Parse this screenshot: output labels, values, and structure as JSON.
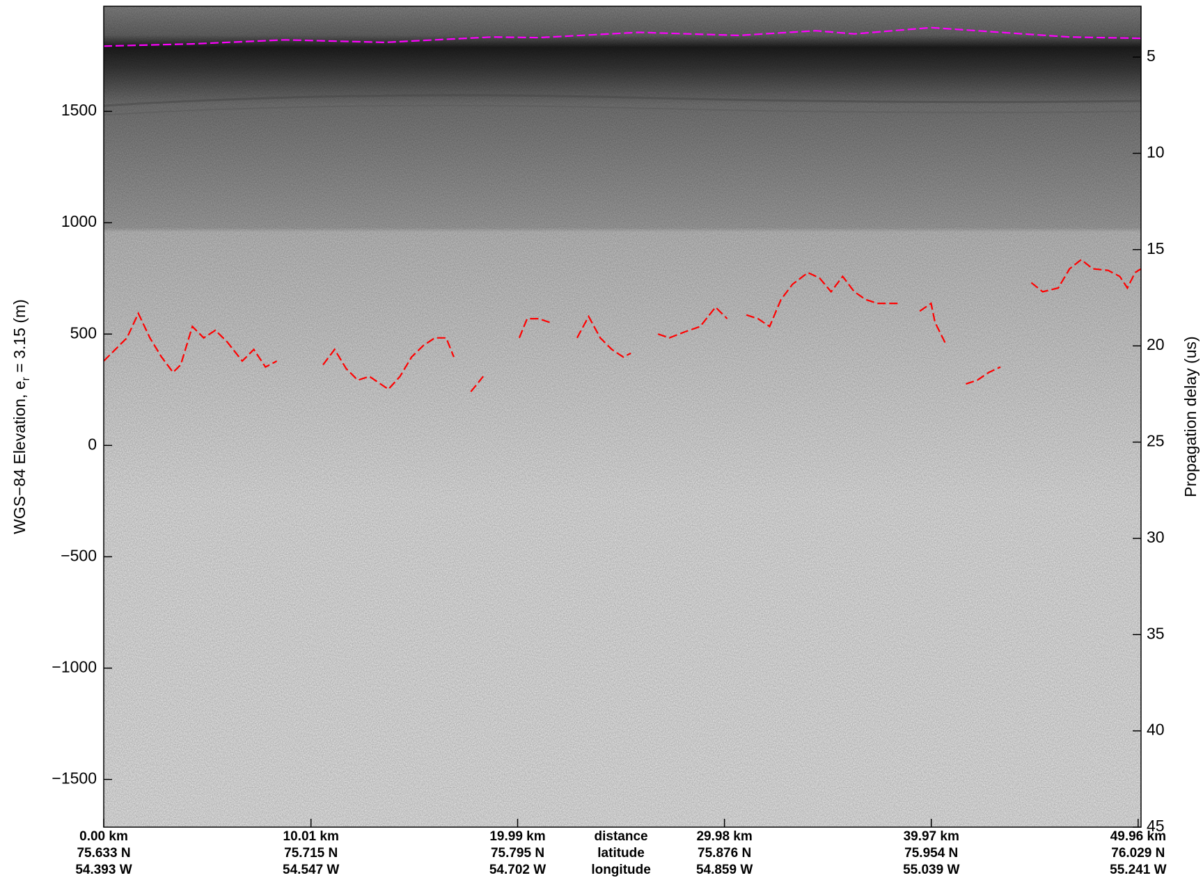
{
  "chart_data": {
    "type": "line",
    "ylabel": {
      "text": "WGS−84 Elevation, e",
      "subscript": "r",
      "suffix": " = 3.15 (m)"
    },
    "y2label": "Propagation delay (us)",
    "xlim": [
      0,
      50.1
    ],
    "ylim": [
      -1714,
      1972
    ],
    "y2lim": [
      2.36,
      45
    ],
    "xticks": [
      {
        "value": 0,
        "label": "0.00 km"
      },
      {
        "value": 10.01,
        "label": "10.01 km"
      },
      {
        "value": 19.99,
        "label": "19.99 km"
      },
      {
        "value": 29.98,
        "label": "29.98 km"
      },
      {
        "value": 39.97,
        "label": "39.97 km"
      },
      {
        "value": 49.96,
        "label": "49.96 km"
      }
    ],
    "x_tick_latitudes": [
      "75.633 N",
      "75.715 N",
      "75.795 N",
      "75.876 N",
      "75.954 N",
      "76.029 N"
    ],
    "x_tick_longitudes": [
      "54.393 W",
      "54.547 W",
      "54.702 W",
      "54.859 W",
      "55.039 W",
      "55.241 W"
    ],
    "x_row_labels": [
      "distance",
      "latitude",
      "longitude"
    ],
    "yticks": [
      {
        "value": -1500,
        "label": "−1500"
      },
      {
        "value": -1000,
        "label": "−1000"
      },
      {
        "value": -500,
        "label": "−500"
      },
      0,
      500,
      1000,
      1500
    ],
    "y2ticks": [
      5,
      10,
      15,
      20,
      25,
      30,
      35,
      40,
      45
    ],
    "series": [
      {
        "color": "#ff00ff",
        "x": [
          0,
          4.28,
          8.74,
          13.57,
          18.77,
          21.0,
          25.84,
          30.67,
          34.39,
          36.25,
          39.96,
          43.31,
          46.65,
          50.1
        ],
        "values": [
          1793,
          1803,
          1821,
          1810,
          1834,
          1831,
          1855,
          1841,
          1862,
          1848,
          1876,
          1855,
          1834,
          1828
        ]
      },
      {
        "color": "#ff0000",
        "x": [
          0,
          0.56,
          1.12,
          1.67,
          2.23,
          2.79,
          3.35,
          3.72,
          4.28,
          4.83,
          5.39,
          5.95,
          6.69,
          7.25,
          7.81,
          8.36,
          9.0,
          9.67,
          10.1,
          10.59,
          11.15,
          11.71,
          12.27,
          12.83,
          13.75,
          14.31,
          14.87,
          15.43,
          15.99,
          16.54,
          16.91,
          17.3,
          17.73,
          18.33,
          19.2,
          20.07,
          20.45,
          21.0,
          21.56,
          22.2,
          22.86,
          23.42,
          23.98,
          24.54,
          25.09,
          25.46,
          26.1,
          26.77,
          27.32,
          28.07,
          28.81,
          29.55,
          30.11,
          30.6,
          31.04,
          31.6,
          32.16,
          32.71,
          33.27,
          34.01,
          34.57,
          35.13,
          35.69,
          36.25,
          36.8,
          37.36,
          37.92,
          38.48,
          38.9,
          39.41,
          39.96,
          40.15,
          40.71,
          41.2,
          41.64,
          42.19,
          42.75,
          43.31,
          44.0,
          44.8,
          45.35,
          46.1,
          46.65,
          47.21,
          47.77,
          48.51,
          49.07,
          49.44,
          49.81,
          50.1
        ],
        "values": [
          379,
          431,
          483,
          593,
          483,
          397,
          328,
          362,
          534,
          483,
          517,
          466,
          379,
          431,
          352,
          379,
          null,
          483,
          null,
          362,
          431,
          345,
          293,
          310,
          252,
          310,
          397,
          448,
          483,
          483,
          397,
          null,
          241,
          310,
          null,
          483,
          569,
          569,
          552,
          null,
          483,
          579,
          483,
          431,
          397,
          414,
          null,
          500,
          483,
          510,
          534,
          621,
          569,
          null,
          586,
          569,
          534,
          655,
          724,
          776,
          752,
          690,
          759,
          690,
          655,
          638,
          638,
          638,
          null,
          603,
          638,
          552,
          448,
          null,
          276,
          293,
          328,
          352,
          null,
          731,
          690,
          707,
          793,
          834,
          793,
          786,
          759,
          707,
          776,
          793
        ]
      }
    ]
  }
}
